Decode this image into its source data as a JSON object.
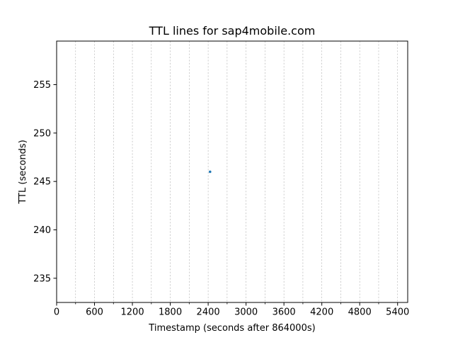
{
  "chart_data": {
    "type": "scatter",
    "title": "TTL lines for sap4mobile.com",
    "xlabel": "Timestamp (seconds after 864000s)",
    "ylabel": "TTL (seconds)",
    "xlim": [
      0,
      5560
    ],
    "ylim": [
      232.5,
      259.5
    ],
    "xticks": [
      0,
      600,
      1200,
      1800,
      2400,
      3000,
      3600,
      4200,
      4800,
      5400
    ],
    "xtick_labels": [
      "0",
      "600",
      "1200",
      "1800",
      "2400",
      "3000",
      "3600",
      "4200",
      "4800",
      "5400"
    ],
    "x_minor_ticks": [
      300,
      900,
      1500,
      2100,
      2700,
      3300,
      3900,
      4500,
      5100
    ],
    "yticks": [
      235,
      240,
      245,
      250,
      255
    ],
    "ytick_labels": [
      "235",
      "240",
      "245",
      "250",
      "255"
    ],
    "grid": true,
    "grid_axis": "x",
    "grid_includes_minor": true,
    "series": [
      {
        "color": "#1f77b4",
        "x": [
          2430
        ],
        "y": [
          246
        ]
      }
    ]
  }
}
